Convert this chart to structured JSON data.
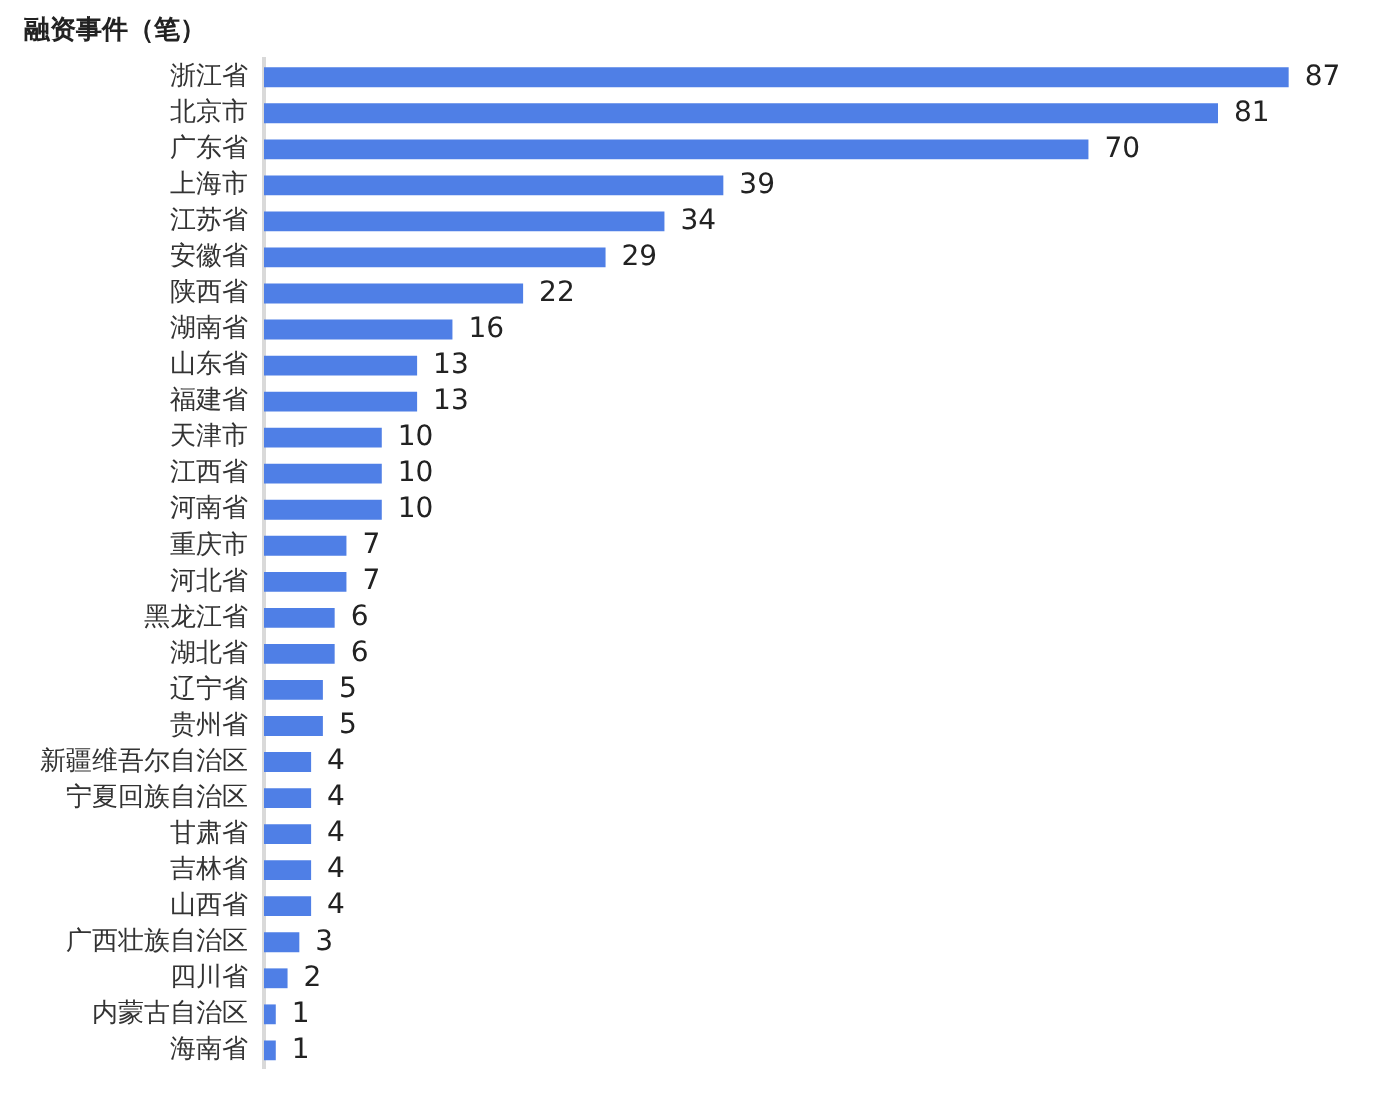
{
  "chart_data": {
    "type": "bar",
    "orientation": "horizontal",
    "title": "融资事件（笔）",
    "categories": [
      "浙江省",
      "北京市",
      "广东省",
      "上海市",
      "江苏省",
      "安徽省",
      "陕西省",
      "湖南省",
      "山东省",
      "福建省",
      "天津市",
      "江西省",
      "河南省",
      "重庆市",
      "河北省",
      "黑龙江省",
      "湖北省",
      "辽宁省",
      "贵州省",
      "新疆维吾尔自治区",
      "宁夏回族自治区",
      "甘肃省",
      "吉林省",
      "山西省",
      "广西壮族自治区",
      "四川省",
      "内蒙古自治区",
      "海南省"
    ],
    "values": [
      87,
      81,
      70,
      39,
      34,
      29,
      22,
      16,
      13,
      13,
      10,
      10,
      10,
      7,
      7,
      6,
      6,
      5,
      5,
      4,
      4,
      4,
      4,
      4,
      3,
      2,
      1,
      1
    ],
    "color": "#4f7fe6",
    "data_labels": true,
    "legend": false,
    "tick_labels": "y"
  }
}
